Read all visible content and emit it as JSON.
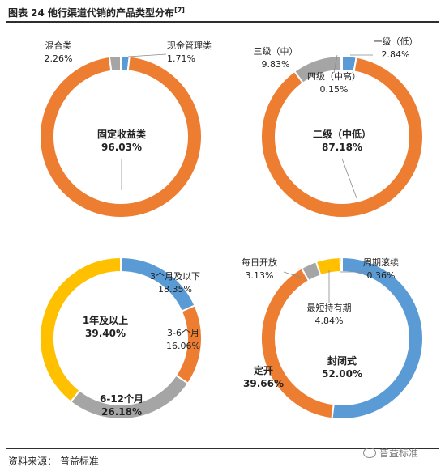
{
  "header": {
    "title": "图表 24 他行渠道代销的产品类型分布",
    "title_ref": "[7]"
  },
  "footer": {
    "source": "资料来源： 普益标准",
    "watermark": "普益标准"
  },
  "colors": {
    "orange": "#ED7D31",
    "gray": "#A5A5A5",
    "blue": "#5B9BD5",
    "yellow": "#FFC000"
  },
  "chart_data": [
    {
      "type": "pie",
      "donut": true,
      "slices": [
        {
          "label": "现金管理类",
          "value": 1.71,
          "value_label": "1.71%",
          "color": "#5B9BD5"
        },
        {
          "label": "固定收益类",
          "value": 96.03,
          "value_label": "96.03%",
          "color": "#ED7D31"
        },
        {
          "label": "混合类",
          "value": 2.26,
          "value_label": "2.26%",
          "color": "#A5A5A5"
        }
      ]
    },
    {
      "type": "pie",
      "donut": true,
      "slices": [
        {
          "label": "一级（低）",
          "value": 2.84,
          "value_label": "2.84%",
          "color": "#5B9BD5"
        },
        {
          "label": "二级（中低）",
          "value": 87.18,
          "value_label": "87.18%",
          "color": "#ED7D31"
        },
        {
          "label": "三级（中）",
          "value": 9.83,
          "value_label": "9.83%",
          "color": "#A5A5A5"
        },
        {
          "label": "四级（中高）",
          "value": 0.15,
          "value_label": "0.15%",
          "color": "#FFC000"
        }
      ]
    },
    {
      "type": "pie",
      "donut": true,
      "slices": [
        {
          "label": "3个月及以下",
          "value": 18.35,
          "value_label": "18.35%",
          "color": "#5B9BD5"
        },
        {
          "label": "3-6个月",
          "value": 16.06,
          "value_label": "16.06%",
          "color": "#ED7D31"
        },
        {
          "label": "6-12个月",
          "value": 26.18,
          "value_label": "26.18%",
          "color": "#A5A5A5"
        },
        {
          "label": "1年及以上",
          "value": 39.4,
          "value_label": "39.40%",
          "color": "#FFC000"
        }
      ]
    },
    {
      "type": "pie",
      "donut": true,
      "slices": [
        {
          "label": "封闭式",
          "value": 52.0,
          "value_label": "52.00%",
          "color": "#5B9BD5"
        },
        {
          "label": "定开",
          "value": 39.66,
          "value_label": "39.66%",
          "color": "#ED7D31"
        },
        {
          "label": "每日开放",
          "value": 3.13,
          "value_label": "3.13%",
          "color": "#A5A5A5"
        },
        {
          "label": "最短持有期",
          "value": 4.84,
          "value_label": "4.84%",
          "color": "#FFC000"
        },
        {
          "label": "周期滚续",
          "value": 0.36,
          "value_label": "0.36%",
          "color": "#5B9BD5"
        }
      ]
    }
  ]
}
